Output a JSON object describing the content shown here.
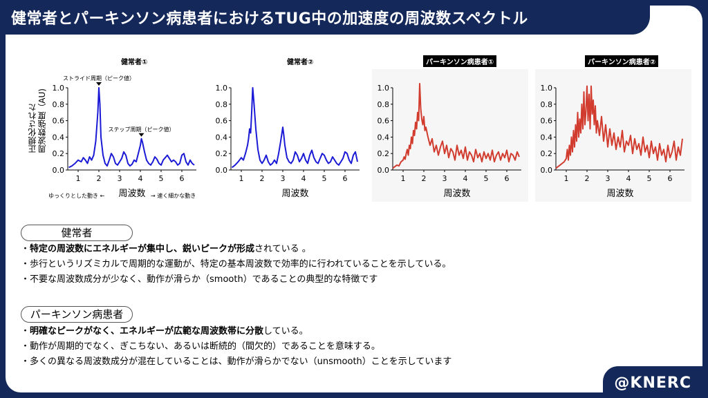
{
  "header": {
    "title": "健常者とパーキンソン病患者におけるTUG中の加速度の周波数スペクトル"
  },
  "axes": {
    "ylabel_line1": "正規化された",
    "ylabel_line2": "周波数強度（AU)",
    "xlabel": "周波数",
    "hint_left": "ゆっくりとした動き ←",
    "hint_right": "→ 速く細かな動き"
  },
  "annotations": {
    "stride": "ストライド周期（ピーク値）",
    "step": "ステップ周期（ピーク値）"
  },
  "colors": {
    "healthy": "#1a1ad6",
    "parkinson": "#d13c2f",
    "navy": "#14285a"
  },
  "chart_data": [
    {
      "type": "line",
      "title": "健常者①",
      "xlabel": "周波数",
      "ylabel": "正規化された周波数強度（AU)",
      "xlim": [
        0.5,
        6.7
      ],
      "ylim": [
        0,
        1.0
      ],
      "xticks": [
        1,
        2,
        3,
        4,
        5,
        6
      ],
      "yticks": [
        0,
        0.2,
        0.4,
        0.6,
        0.8,
        1.0
      ],
      "series": [
        {
          "x": [
            0.55,
            0.7,
            0.85,
            1.0,
            1.15,
            1.25,
            1.35,
            1.45,
            1.55,
            1.65,
            1.75,
            1.85,
            1.95,
            2.0,
            2.05,
            2.1,
            2.2,
            2.3,
            2.4,
            2.5,
            2.6,
            2.7,
            2.8,
            2.9,
            3.0,
            3.1,
            3.2,
            3.3,
            3.4,
            3.5,
            3.6,
            3.7,
            3.8,
            3.9,
            4.0,
            4.05,
            4.1,
            4.2,
            4.3,
            4.4,
            4.5,
            4.6,
            4.7,
            4.8,
            4.9,
            5.0,
            5.1,
            5.2,
            5.3,
            5.4,
            5.5,
            5.6,
            5.7,
            5.8,
            5.9,
            6.0,
            6.1,
            6.2,
            6.3,
            6.4,
            6.5,
            6.6
          ],
          "y": [
            0.03,
            0.05,
            0.08,
            0.12,
            0.1,
            0.15,
            0.12,
            0.08,
            0.16,
            0.12,
            0.18,
            0.35,
            0.7,
            1.0,
            0.8,
            0.4,
            0.18,
            0.08,
            0.05,
            0.12,
            0.2,
            0.16,
            0.08,
            0.06,
            0.1,
            0.14,
            0.22,
            0.18,
            0.08,
            0.05,
            0.07,
            0.12,
            0.1,
            0.2,
            0.3,
            0.38,
            0.34,
            0.22,
            0.12,
            0.08,
            0.06,
            0.1,
            0.16,
            0.13,
            0.08,
            0.06,
            0.12,
            0.15,
            0.18,
            0.14,
            0.1,
            0.12,
            0.1,
            0.06,
            0.08,
            0.18,
            0.2,
            0.1,
            0.06,
            0.12,
            0.08,
            0.06
          ]
        }
      ]
    },
    {
      "type": "line",
      "title": "健常者②",
      "xlabel": "周波数",
      "xlim": [
        0.5,
        6.7
      ],
      "ylim": [
        0,
        1.0
      ],
      "xticks": [
        1,
        2,
        3,
        4,
        5,
        6
      ],
      "yticks": [
        0,
        0.2,
        0.4,
        0.6,
        0.8,
        1.0
      ],
      "series": [
        {
          "x": [
            0.55,
            0.7,
            0.85,
            1.0,
            1.1,
            1.2,
            1.3,
            1.35,
            1.4,
            1.45,
            1.5,
            1.55,
            1.6,
            1.7,
            1.8,
            1.9,
            2.0,
            2.1,
            2.2,
            2.3,
            2.4,
            2.5,
            2.6,
            2.7,
            2.8,
            2.9,
            3.0,
            3.05,
            3.1,
            3.2,
            3.3,
            3.4,
            3.5,
            3.6,
            3.7,
            3.8,
            3.9,
            4.0,
            4.1,
            4.2,
            4.3,
            4.4,
            4.5,
            4.6,
            4.7,
            4.8,
            4.9,
            5.0,
            5.1,
            5.2,
            5.3,
            5.4,
            5.5,
            5.6,
            5.7,
            5.8,
            5.9,
            6.0,
            6.1,
            6.2,
            6.3,
            6.4,
            6.5,
            6.6
          ],
          "y": [
            0.03,
            0.06,
            0.1,
            0.15,
            0.12,
            0.2,
            0.3,
            0.38,
            0.5,
            0.45,
            0.7,
            1.0,
            0.85,
            0.5,
            0.25,
            0.12,
            0.08,
            0.12,
            0.18,
            0.1,
            0.06,
            0.08,
            0.12,
            0.08,
            0.2,
            0.35,
            0.52,
            0.42,
            0.3,
            0.15,
            0.1,
            0.08,
            0.12,
            0.22,
            0.18,
            0.1,
            0.14,
            0.2,
            0.12,
            0.08,
            0.18,
            0.24,
            0.15,
            0.1,
            0.08,
            0.14,
            0.2,
            0.18,
            0.12,
            0.08,
            0.1,
            0.16,
            0.12,
            0.08,
            0.06,
            0.1,
            0.14,
            0.22,
            0.2,
            0.12,
            0.08,
            0.18,
            0.22,
            0.1
          ]
        }
      ]
    },
    {
      "type": "line",
      "title": "パーキンソン病患者①",
      "xlabel": "周波数",
      "xlim": [
        0.5,
        6.7
      ],
      "ylim": [
        0,
        1.0
      ],
      "xticks": [
        1,
        2,
        3,
        4,
        5,
        6
      ],
      "yticks": [
        0,
        0.2,
        0.4,
        0.6,
        0.8,
        1.0
      ],
      "series": [
        {
          "x": [
            0.5,
            0.6,
            0.7,
            0.8,
            0.9,
            1.0,
            1.05,
            1.1,
            1.15,
            1.2,
            1.25,
            1.3,
            1.35,
            1.4,
            1.45,
            1.5,
            1.55,
            1.6,
            1.65,
            1.7,
            1.75,
            1.8,
            1.85,
            1.9,
            1.95,
            2.0,
            2.05,
            2.1,
            2.2,
            2.3,
            2.4,
            2.5,
            2.6,
            2.7,
            2.8,
            2.9,
            3.0,
            3.1,
            3.2,
            3.3,
            3.4,
            3.5,
            3.6,
            3.7,
            3.8,
            3.9,
            4.0,
            4.1,
            4.2,
            4.3,
            4.4,
            4.5,
            4.6,
            4.7,
            4.8,
            4.9,
            5.0,
            5.1,
            5.2,
            5.3,
            5.4,
            5.5,
            5.6,
            5.7,
            5.8,
            5.9,
            6.0,
            6.1,
            6.2,
            6.3,
            6.4,
            6.5,
            6.6
          ],
          "y": [
            0.02,
            0.04,
            0.06,
            0.05,
            0.1,
            0.12,
            0.16,
            0.13,
            0.2,
            0.25,
            0.18,
            0.3,
            0.26,
            0.4,
            0.32,
            0.48,
            0.42,
            0.58,
            0.5,
            0.7,
            0.6,
            1.05,
            0.75,
            0.62,
            0.55,
            0.65,
            0.48,
            0.52,
            0.4,
            0.3,
            0.38,
            0.22,
            0.3,
            0.18,
            0.28,
            0.35,
            0.2,
            0.3,
            0.15,
            0.26,
            0.22,
            0.12,
            0.3,
            0.18,
            0.24,
            0.14,
            0.28,
            0.12,
            0.22,
            0.18,
            0.1,
            0.25,
            0.15,
            0.2,
            0.1,
            0.22,
            0.14,
            0.2,
            0.12,
            0.24,
            0.1,
            0.18,
            0.22,
            0.12,
            0.2,
            0.15,
            0.24,
            0.1,
            0.2,
            0.18,
            0.12,
            0.22,
            0.16
          ]
        }
      ]
    },
    {
      "type": "line",
      "title": "パーキンソン病患者②",
      "xlabel": "周波数",
      "xlim": [
        0.5,
        6.7
      ],
      "ylim": [
        0,
        1.0
      ],
      "xticks": [
        1,
        2,
        3,
        4,
        5,
        6
      ],
      "yticks": [
        0,
        0.2,
        0.4,
        0.6,
        0.8,
        1.0
      ],
      "series": [
        {
          "x": [
            0.5,
            0.6,
            0.7,
            0.8,
            0.9,
            1.0,
            1.05,
            1.1,
            1.15,
            1.2,
            1.25,
            1.3,
            1.35,
            1.4,
            1.45,
            1.5,
            1.55,
            1.6,
            1.65,
            1.7,
            1.75,
            1.8,
            1.85,
            1.9,
            1.95,
            2.0,
            2.05,
            2.1,
            2.15,
            2.2,
            2.25,
            2.3,
            2.35,
            2.4,
            2.45,
            2.5,
            2.6,
            2.7,
            2.8,
            2.9,
            3.0,
            3.1,
            3.2,
            3.3,
            3.4,
            3.5,
            3.6,
            3.7,
            3.8,
            3.9,
            4.0,
            4.1,
            4.2,
            4.3,
            4.4,
            4.5,
            4.6,
            4.7,
            4.8,
            4.9,
            5.0,
            5.1,
            5.2,
            5.3,
            5.4,
            5.5,
            5.6,
            5.7,
            5.8,
            5.9,
            6.0,
            6.1,
            6.2,
            6.3,
            6.4,
            6.5,
            6.6
          ],
          "y": [
            0.02,
            0.04,
            0.06,
            0.08,
            0.1,
            0.14,
            0.25,
            0.12,
            0.3,
            0.18,
            0.4,
            0.22,
            0.48,
            0.28,
            0.55,
            0.35,
            0.7,
            0.4,
            0.62,
            0.45,
            0.8,
            0.5,
            0.95,
            0.55,
            0.72,
            1.02,
            0.6,
            0.92,
            0.5,
            1.02,
            0.68,
            0.85,
            0.55,
            0.78,
            0.45,
            0.6,
            0.42,
            0.65,
            0.35,
            0.55,
            0.28,
            0.5,
            0.3,
            0.45,
            0.25,
            0.4,
            0.28,
            0.48,
            0.22,
            0.35,
            0.3,
            0.42,
            0.2,
            0.38,
            0.25,
            0.32,
            0.18,
            0.4,
            0.22,
            0.3,
            0.15,
            0.35,
            0.2,
            0.28,
            0.12,
            0.32,
            0.18,
            0.25,
            0.1,
            0.3,
            0.15,
            0.22,
            0.35,
            0.12,
            0.28,
            0.18,
            0.38
          ]
        }
      ]
    }
  ],
  "healthy": {
    "label": "健常者",
    "bullet1_bold_a": "特定の周波数にエネルギーが集中し、鋭いピークが形成",
    "bullet1_tail": "されている 。",
    "bullet2": "歩行というリズミカルで周期的な運動が、特定の基本周波数で効率的に行われていることを示している。",
    "bullet3": "不要な周波数成分が少なく、動作が滑らか（smooth）であることの典型的な特徴です"
  },
  "parkinson": {
    "label": "パーキンソン病患者",
    "bullet1_bold": "明確なピークがなく、エネルギーが広範な周波数帯に分散",
    "bullet1_tail": "している。",
    "bullet2": "動作が周期的でなく、ぎこちない、あるいは断続的（間欠的）であることを意味する。",
    "bullet3": "多くの異なる周波数成分が混在していることは、動作が滑らかでない（unsmooth）ことを示しています"
  },
  "brand": {
    "text": "@KNERC"
  }
}
